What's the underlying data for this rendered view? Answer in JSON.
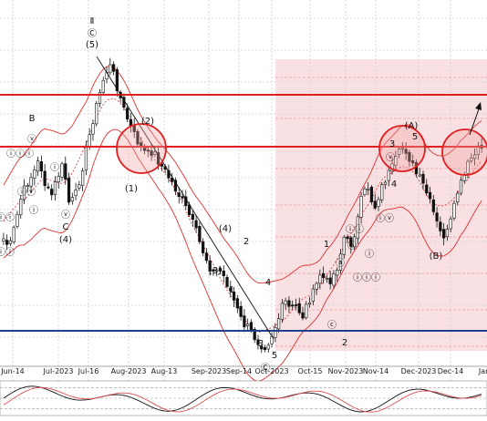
{
  "chart_data": {
    "type": "candlestick",
    "x_labels": [
      "Jun-14",
      "Jul-2023",
      "Jul-16",
      "Aug-2023",
      "Aug-13",
      "Sep-2023",
      "Sep-14",
      "Oct-2023",
      "Oct-15",
      "Nov-2023",
      "Nov-14",
      "Dec-2023",
      "Dec-14",
      "Jan"
    ],
    "grid": true,
    "colors": {
      "up": "#ffffff",
      "down": "#111111",
      "band": "#e03030",
      "resistance": "#e02020",
      "support": "#1f3f8f",
      "shade": "#f7d7da",
      "trend": "#111111",
      "stoch_fast": "#111111",
      "stoch_slow": "#e05050"
    },
    "wave_labels": [
      "Ⅱ",
      "Ⓒ",
      "(5)",
      "(2)",
      "(1)",
      "B",
      "ⓥ",
      "ⓘⓘⓘ",
      "ⓘⓥ",
      "ⓘ",
      "ⓘⓘ",
      "ⓘⓘ",
      "ⓥ",
      "ⓘ",
      "C",
      "(4)",
      "(4)",
      "(3)",
      "2",
      "1",
      "4",
      "3",
      "5",
      "Ⓒ",
      "1",
      "2",
      "ⓐ",
      "ⓒ",
      "ⓑ",
      "ⓘⓘ",
      "ⓘ",
      "ⓘⓘⓘ",
      "ⓘⓥ",
      "ⓥ",
      "3",
      "4",
      "(A)",
      "5",
      "(B)"
    ],
    "oscillator": {
      "levels": [
        80,
        50,
        20
      ]
    }
  }
}
